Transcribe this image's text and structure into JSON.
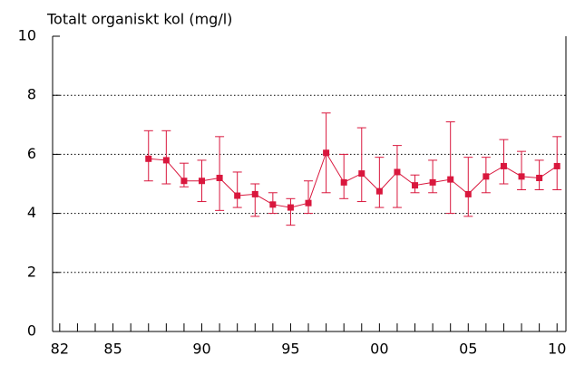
{
  "chart_data": {
    "type": "line",
    "title": "Totalt organiskt kol (mg/l)",
    "x": [
      1987,
      1988,
      1989,
      1990,
      1991,
      1992,
      1993,
      1994,
      1995,
      1996,
      1997,
      1998,
      1999,
      2000,
      2001,
      2002,
      2003,
      2004,
      2005,
      2006,
      2007,
      2008,
      2009,
      2010
    ],
    "series": [
      {
        "color": "#d9173d",
        "values": [
          5.85,
          5.8,
          5.1,
          5.1,
          5.2,
          4.6,
          4.65,
          4.3,
          4.2,
          4.35,
          6.05,
          5.05,
          5.35,
          4.75,
          5.4,
          4.95,
          5.05,
          5.15,
          4.65,
          5.25,
          5.6,
          5.25,
          5.2,
          5.6
        ],
        "upper": [
          6.8,
          6.8,
          5.7,
          5.8,
          6.6,
          5.4,
          5.0,
          4.7,
          4.5,
          5.1,
          7.4,
          6.0,
          6.9,
          5.9,
          6.3,
          5.3,
          5.8,
          7.1,
          5.9,
          5.9,
          6.5,
          6.1,
          5.8,
          6.6
        ],
        "lower": [
          5.1,
          5.0,
          4.9,
          4.4,
          4.1,
          4.2,
          3.9,
          4.0,
          3.6,
          4.0,
          4.7,
          4.5,
          4.4,
          4.2,
          4.2,
          4.7,
          4.7,
          4.0,
          3.9,
          4.7,
          5.0,
          4.8,
          4.8,
          4.8
        ]
      }
    ],
    "xlim": [
      1981.6,
      2010.5
    ],
    "xticks": [
      {
        "value": 1982,
        "label": "82"
      },
      {
        "value": 1985,
        "label": "85"
      },
      {
        "value": 1990,
        "label": "90"
      },
      {
        "value": 1995,
        "label": "95"
      },
      {
        "value": 2000,
        "label": "00"
      },
      {
        "value": 2005,
        "label": "05"
      },
      {
        "value": 2010,
        "label": "10"
      }
    ],
    "xminorticks": [
      1983,
      1984,
      1986,
      1987,
      1988,
      1989,
      1991,
      1992,
      1993,
      1994,
      1996,
      1997,
      1998,
      1999,
      2001,
      2002,
      2003,
      2004,
      2006,
      2007,
      2008,
      2009
    ],
    "ylim": [
      0,
      10
    ],
    "yticks": [
      0,
      2,
      4,
      6,
      8,
      10
    ],
    "grid": true
  }
}
